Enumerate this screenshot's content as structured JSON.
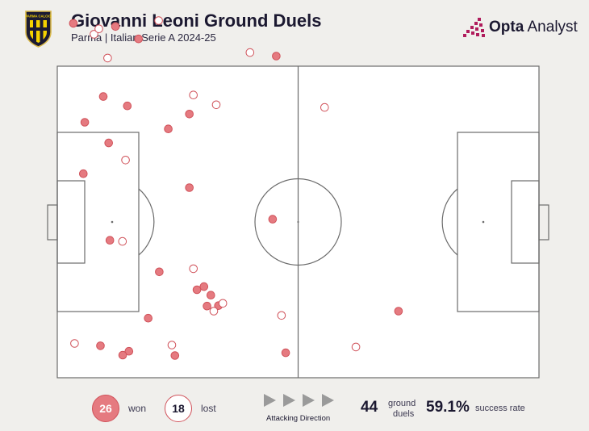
{
  "header": {
    "title": "Giovanni Leoni Ground Duels",
    "subtitle": "Parma | Italian Serie A 2024-25",
    "club_crest_text": "PARMA CALCIO",
    "brand_name_bold": "Opta",
    "brand_name_rest": " Analyst"
  },
  "colors": {
    "won_fill": "#e57a80",
    "outline": "#d0525a",
    "lost_fill": "#ffffff",
    "pitch_bg": "#ffffff",
    "pitch_line": "#6b6b6b",
    "page_bg": "#f0efec",
    "title_color": "#1b1830",
    "arrow_color": "#9a9a9a"
  },
  "legend": {
    "won_count": "26",
    "won_label": "won",
    "lost_count": "18",
    "lost_label": "lost",
    "direction_label": "Attacking Direction",
    "direction_icons": [
      "play-icon",
      "play-icon",
      "play-icon",
      "play-icon"
    ]
  },
  "stats": {
    "total": "44",
    "total_label_1": "ground",
    "total_label_2": "duels",
    "success_rate": "59.1%",
    "success_label": "success rate"
  },
  "duels": [
    {
      "x": 8.0,
      "y": 91.0,
      "outcome": "won"
    },
    {
      "x": 29.0,
      "y": 90.2,
      "outcome": "won"
    },
    {
      "x": 50.5,
      "y": 91.7,
      "outcome": "lost"
    },
    {
      "x": 18.3,
      "y": 88.2,
      "outcome": "lost"
    },
    {
      "x": 20.7,
      "y": 89.6,
      "outcome": "lost"
    },
    {
      "x": 40.5,
      "y": 87.0,
      "outcome": "won"
    },
    {
      "x": 25.1,
      "y": 82.1,
      "outcome": "lost"
    },
    {
      "x": 96.0,
      "y": 83.5,
      "outcome": "lost"
    },
    {
      "x": 109.1,
      "y": 82.6,
      "outcome": "won"
    },
    {
      "x": 22.9,
      "y": 72.2,
      "outcome": "won"
    },
    {
      "x": 34.9,
      "y": 69.8,
      "outcome": "won"
    },
    {
      "x": 67.8,
      "y": 72.6,
      "outcome": "lost"
    },
    {
      "x": 79.2,
      "y": 70.1,
      "outcome": "lost"
    },
    {
      "x": 65.8,
      "y": 67.7,
      "outcome": "won"
    },
    {
      "x": 13.7,
      "y": 65.6,
      "outcome": "won"
    },
    {
      "x": 55.3,
      "y": 63.9,
      "outcome": "won"
    },
    {
      "x": 25.6,
      "y": 60.3,
      "outcome": "won"
    },
    {
      "x": 34.0,
      "y": 55.9,
      "outcome": "lost"
    },
    {
      "x": 133.2,
      "y": 69.4,
      "outcome": "lost"
    },
    {
      "x": 13.0,
      "y": 52.4,
      "outcome": "won"
    },
    {
      "x": 65.8,
      "y": 48.8,
      "outcome": "won"
    },
    {
      "x": 107.3,
      "y": 40.7,
      "outcome": "won"
    },
    {
      "x": 26.2,
      "y": 35.3,
      "outcome": "won"
    },
    {
      "x": 32.5,
      "y": 35.0,
      "outcome": "lost"
    },
    {
      "x": 67.8,
      "y": 28.0,
      "outcome": "lost"
    },
    {
      "x": 50.8,
      "y": 27.2,
      "outcome": "won"
    },
    {
      "x": 69.6,
      "y": 22.6,
      "outcome": "won"
    },
    {
      "x": 73.1,
      "y": 23.4,
      "outcome": "won"
    },
    {
      "x": 76.5,
      "y": 21.2,
      "outcome": "won"
    },
    {
      "x": 74.6,
      "y": 18.4,
      "outcome": "won"
    },
    {
      "x": 80.3,
      "y": 18.5,
      "outcome": "won"
    },
    {
      "x": 82.5,
      "y": 19.1,
      "outcome": "lost"
    },
    {
      "x": 78.0,
      "y": 17.1,
      "outcome": "lost"
    },
    {
      "x": 45.3,
      "y": 15.3,
      "outcome": "won"
    },
    {
      "x": 111.7,
      "y": 16.0,
      "outcome": "lost"
    },
    {
      "x": 170.0,
      "y": 17.1,
      "outcome": "won"
    },
    {
      "x": 8.6,
      "y": 8.8,
      "outcome": "lost"
    },
    {
      "x": 21.5,
      "y": 8.2,
      "outcome": "won"
    },
    {
      "x": 35.7,
      "y": 6.8,
      "outcome": "won"
    },
    {
      "x": 32.6,
      "y": 5.8,
      "outcome": "won"
    },
    {
      "x": 57.1,
      "y": 8.4,
      "outcome": "lost"
    },
    {
      "x": 58.6,
      "y": 5.7,
      "outcome": "won"
    },
    {
      "x": 113.8,
      "y": 6.4,
      "outcome": "won"
    },
    {
      "x": 148.8,
      "y": 7.9,
      "outcome": "lost"
    }
  ]
}
